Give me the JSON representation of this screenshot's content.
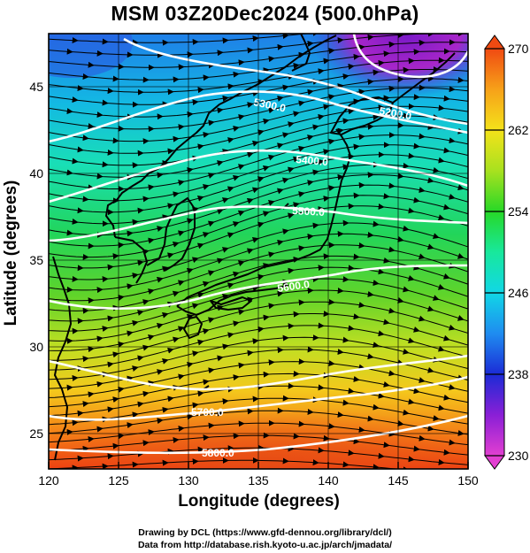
{
  "title": "MSM 03Z20Dec2024 (500.0hPa)",
  "x_axis": {
    "label": "Longitude (degrees)",
    "range": [
      120,
      150
    ],
    "ticks": [
      "120",
      "125",
      "130",
      "135",
      "140",
      "145",
      "150"
    ]
  },
  "y_axis": {
    "label": "Latitude  (degrees)",
    "range": [
      22.5,
      47.5
    ],
    "ticks": [
      "25",
      "30",
      "35",
      "40",
      "45"
    ]
  },
  "colorbar": {
    "range": [
      230,
      270
    ],
    "ticks": [
      "230",
      "238",
      "246",
      "254",
      "262",
      "270"
    ],
    "colors": [
      "#e23fd1",
      "#8a1fd6",
      "#1b2bd6",
      "#1f8cf0",
      "#11d7e6",
      "#18e89c",
      "#27d827",
      "#a8e11f",
      "#f4e21a",
      "#f7a119",
      "#f04a12"
    ]
  },
  "contours": [
    {
      "label": "5200.0"
    },
    {
      "label": "5300.0"
    },
    {
      "label": "5400.0"
    },
    {
      "label": "5500.0"
    },
    {
      "label": "5600.0"
    },
    {
      "label": "5700.0"
    },
    {
      "label": "5800.0"
    }
  ],
  "credits": {
    "line1": "Drawing by DCL (https://www.gfd-dennou.org/library/dcl/)",
    "line2": "Data from http://database.rish.kyoto-u.ac.jp/arch/jmadata/"
  }
}
